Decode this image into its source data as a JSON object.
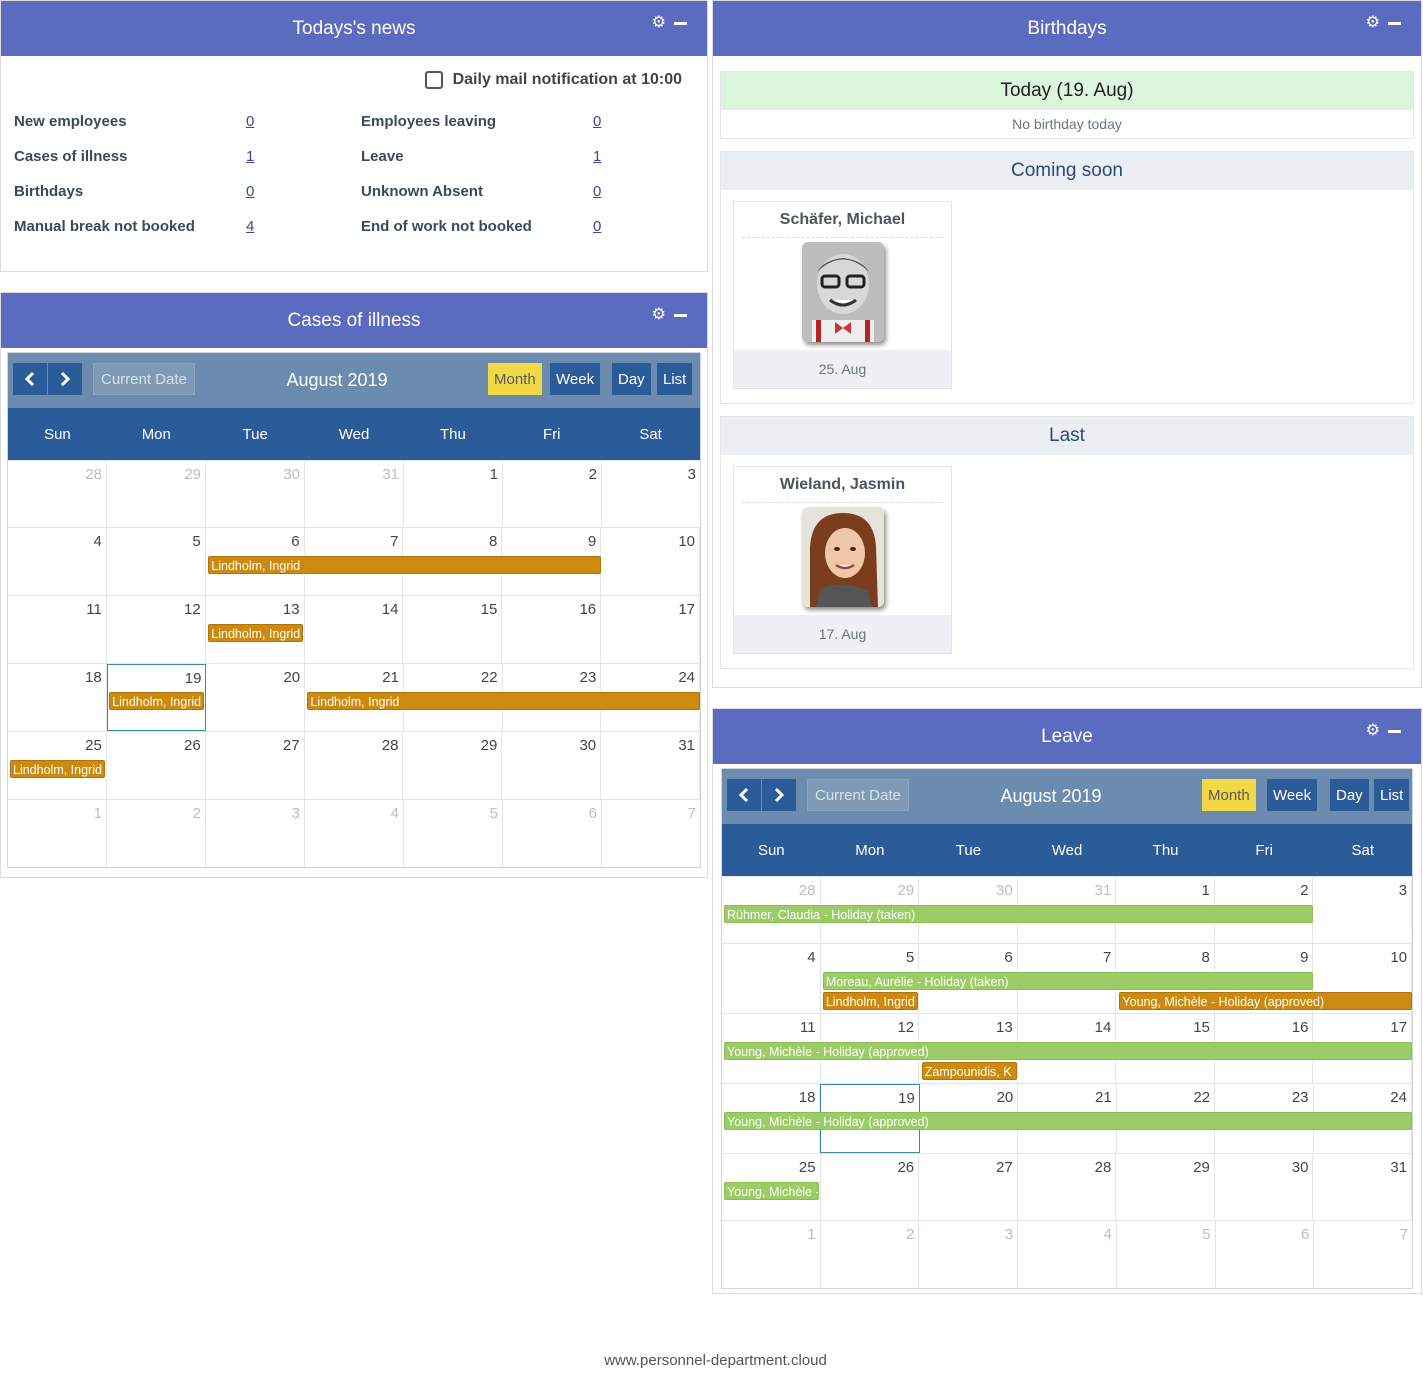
{
  "news": {
    "title": "Todays's news",
    "mail_label": "Daily mail notification at 10:00",
    "items": [
      {
        "label": "New employees",
        "value": "0"
      },
      {
        "label": "Employees leaving",
        "value": "0"
      },
      {
        "label": "Cases of illness",
        "value": "1"
      },
      {
        "label": "Leave",
        "value": "1"
      },
      {
        "label": "Birthdays",
        "value": "0"
      },
      {
        "label": "Unknown Absent",
        "value": "0"
      },
      {
        "label": "Manual break not booked",
        "value": "4"
      },
      {
        "label": "End of work not booked",
        "value": "0"
      }
    ]
  },
  "illness": {
    "title": "Cases of illness",
    "calendar": {
      "current_date_label": "Current Date",
      "month_title": "August 2019",
      "views": [
        "Month",
        "Week",
        "Day",
        "List"
      ],
      "active_view": "Month",
      "weekdays": [
        "Sun",
        "Mon",
        "Tue",
        "Wed",
        "Thu",
        "Fri",
        "Sat"
      ],
      "weeks": [
        [
          "28",
          "29",
          "30",
          "31",
          "1",
          "2",
          "3"
        ],
        [
          "4",
          "5",
          "6",
          "7",
          "8",
          "9",
          "10"
        ],
        [
          "11",
          "12",
          "13",
          "14",
          "15",
          "16",
          "17"
        ],
        [
          "18",
          "19",
          "20",
          "21",
          "22",
          "23",
          "24"
        ],
        [
          "25",
          "26",
          "27",
          "28",
          "29",
          "30",
          "31"
        ],
        [
          "1",
          "2",
          "3",
          "4",
          "5",
          "6",
          "7"
        ]
      ],
      "events": [
        {
          "label": "Lindholm, Ingrid",
          "week": 1,
          "start": 2,
          "span": 4,
          "lane": 0,
          "color": "orange"
        },
        {
          "label": "Lindholm, Ingrid",
          "week": 2,
          "start": 2,
          "span": 1,
          "lane": 0,
          "color": "orange"
        },
        {
          "label": "Lindholm, Ingrid",
          "week": 3,
          "start": 1,
          "span": 1,
          "lane": 0,
          "color": "orange"
        },
        {
          "label": "Lindholm, Ingrid",
          "week": 3,
          "start": 3,
          "span": 4,
          "lane": 0,
          "color": "orange"
        },
        {
          "label": "Lindholm, Ingrid",
          "week": 4,
          "start": 0,
          "span": 1,
          "lane": 0,
          "color": "orange"
        }
      ]
    }
  },
  "birthdays": {
    "title": "Birthdays",
    "today_label": "Today (19. Aug)",
    "today_text": "No birthday today",
    "coming_label": "Coming soon",
    "coming": {
      "name": "Schäfer, Michael",
      "date": "25. Aug"
    },
    "last_label": "Last",
    "last": {
      "name": "Wieland, Jasmin",
      "date": "17. Aug"
    }
  },
  "leave": {
    "title": "Leave",
    "calendar": {
      "current_date_label": "Current Date",
      "month_title": "August 2019",
      "views": [
        "Month",
        "Week",
        "Day",
        "List"
      ],
      "active_view": "Month",
      "weekdays": [
        "Sun",
        "Mon",
        "Tue",
        "Wed",
        "Thu",
        "Fri",
        "Sat"
      ],
      "weeks": [
        [
          "28",
          "29",
          "30",
          "31",
          "1",
          "2",
          "3"
        ],
        [
          "4",
          "5",
          "6",
          "7",
          "8",
          "9",
          "10"
        ],
        [
          "11",
          "12",
          "13",
          "14",
          "15",
          "16",
          "17"
        ],
        [
          "18",
          "19",
          "20",
          "21",
          "22",
          "23",
          "24"
        ],
        [
          "25",
          "26",
          "27",
          "28",
          "29",
          "30",
          "31"
        ],
        [
          "1",
          "2",
          "3",
          "4",
          "5",
          "6",
          "7"
        ]
      ],
      "events": [
        {
          "label": "Rühmer, Claudia - Holiday (taken)",
          "week": 0,
          "start": 0,
          "span": 6,
          "lane": 0,
          "color": "green"
        },
        {
          "label": "Moreau, Aurélie - Holiday (taken)",
          "week": 1,
          "start": 1,
          "span": 5,
          "lane": 0,
          "color": "green"
        },
        {
          "label": "Lindholm, Ingrid",
          "week": 1,
          "start": 1,
          "span": 1,
          "lane": 1,
          "color": "orange"
        },
        {
          "label": "Young, Michèle - Holiday (approved)",
          "week": 1,
          "start": 4,
          "span": 3,
          "lane": 1,
          "color": "orange"
        },
        {
          "label": "Young, Michèle - Holiday (approved)",
          "week": 2,
          "start": 0,
          "span": 7,
          "lane": 0,
          "color": "green"
        },
        {
          "label": "Zampounidis, K",
          "week": 2,
          "start": 2,
          "span": 1,
          "lane": 1,
          "color": "orange"
        },
        {
          "label": "Young, Michèle - Holiday (approved)",
          "week": 3,
          "start": 0,
          "span": 7,
          "lane": 0,
          "color": "green"
        },
        {
          "label": "Young, Michèle -",
          "week": 4,
          "start": 0,
          "span": 1,
          "lane": 0,
          "color": "green"
        }
      ]
    }
  },
  "colors": {
    "header": "#5b6bbf",
    "calendar_blue": "#2c5b9a",
    "toolbar": "#6b8cae",
    "active_view": "#f3d846",
    "event_orange": "#cc8a10",
    "event_green": "#9ccc65"
  },
  "footer": "www.personnel-department.cloud"
}
